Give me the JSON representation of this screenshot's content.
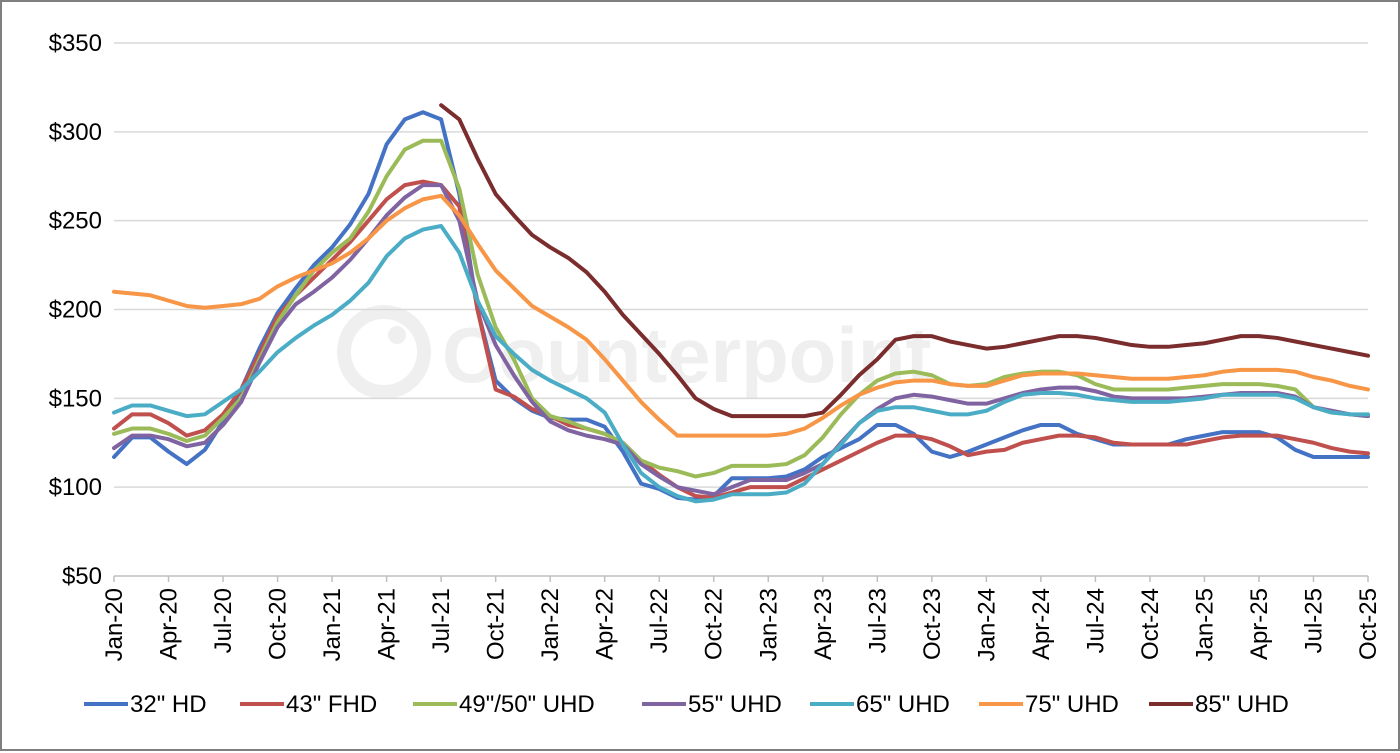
{
  "watermark": "Counterpoint",
  "chart_data": {
    "type": "line",
    "title": "",
    "xlabel": "",
    "ylabel": "",
    "ylim": [
      50,
      350
    ],
    "y_ticks": [
      "$50",
      "$100",
      "$150",
      "$200",
      "$250",
      "$300",
      "$350"
    ],
    "y_tick_values": [
      50,
      100,
      150,
      200,
      250,
      300,
      350
    ],
    "grid": true,
    "legend_position": "bottom",
    "x": [
      "Jan-20",
      "Feb-20",
      "Mar-20",
      "Apr-20",
      "May-20",
      "Jun-20",
      "Jul-20",
      "Aug-20",
      "Sep-20",
      "Oct-20",
      "Nov-20",
      "Dec-20",
      "Jan-21",
      "Feb-21",
      "Mar-21",
      "Apr-21",
      "May-21",
      "Jun-21",
      "Jul-21",
      "Aug-21",
      "Sep-21",
      "Oct-21",
      "Nov-21",
      "Dec-21",
      "Jan-22",
      "Feb-22",
      "Mar-22",
      "Apr-22",
      "May-22",
      "Jun-22",
      "Jul-22",
      "Aug-22",
      "Sep-22",
      "Oct-22",
      "Nov-22",
      "Dec-22",
      "Jan-23",
      "Feb-23",
      "Mar-23",
      "Apr-23",
      "May-23",
      "Jun-23",
      "Jul-23",
      "Aug-23",
      "Sep-23",
      "Oct-23",
      "Nov-23",
      "Dec-23",
      "Jan-24",
      "Feb-24",
      "Mar-24",
      "Apr-24",
      "May-24",
      "Jun-24",
      "Jul-24",
      "Aug-24",
      "Sep-24",
      "Oct-24",
      "Nov-24",
      "Dec-24",
      "Jan-25",
      "Feb-25",
      "Mar-25",
      "Apr-25",
      "May-25",
      "Jun-25",
      "Jul-25",
      "Aug-25",
      "Sep-25",
      "Oct-25"
    ],
    "x_tick_labels": [
      "Jan-20",
      "Apr-20",
      "Jul-20",
      "Oct-20",
      "Jan-21",
      "Apr-21",
      "Jul-21",
      "Oct-21",
      "Jan-22",
      "Apr-22",
      "Jul-22",
      "Oct-22",
      "Jan-23",
      "Apr-23",
      "Jul-23",
      "Oct-23",
      "Jan-24",
      "Apr-24",
      "Jul-24",
      "Oct-24",
      "Jan-25",
      "Apr-25",
      "Jul-25",
      "Oct-25"
    ],
    "series": [
      {
        "name": "32\" HD",
        "color": "#4472c4",
        "values": [
          117,
          128,
          128,
          120,
          113,
          121,
          137,
          155,
          178,
          198,
          212,
          225,
          235,
          248,
          265,
          293,
          307,
          311,
          307,
          265,
          200,
          160,
          150,
          143,
          139,
          138,
          138,
          134,
          120,
          102,
          99,
          94,
          93,
          95,
          105,
          105,
          105,
          106,
          110,
          117,
          122,
          127,
          135,
          135,
          130,
          120,
          117,
          120,
          124,
          128,
          132,
          135,
          135,
          130,
          127,
          124,
          124,
          124,
          124,
          127,
          129,
          131,
          131,
          131,
          128,
          121,
          117,
          117,
          117,
          117
        ]
      },
      {
        "name": "43\" FHD",
        "color": "#c0504d",
        "values": [
          133,
          141,
          141,
          136,
          129,
          132,
          141,
          155,
          175,
          196,
          208,
          218,
          228,
          238,
          250,
          262,
          270,
          272,
          270,
          258,
          200,
          155,
          151,
          144,
          140,
          135,
          133,
          130,
          125,
          115,
          107,
          100,
          95,
          94,
          97,
          100,
          100,
          100,
          105,
          110,
          115,
          120,
          125,
          129,
          129,
          127,
          123,
          118,
          120,
          121,
          125,
          127,
          129,
          129,
          128,
          125,
          124,
          124,
          124,
          124,
          126,
          128,
          129,
          129,
          129,
          127,
          125,
          122,
          120,
          119
        ]
      },
      {
        "name": "49\"/50\" UHD",
        "color": "#9bbb59",
        "values": [
          130,
          133,
          133,
          130,
          126,
          129,
          139,
          150,
          172,
          193,
          208,
          222,
          232,
          240,
          255,
          275,
          290,
          295,
          295,
          268,
          220,
          190,
          172,
          150,
          140,
          137,
          133,
          130,
          125,
          115,
          111,
          109,
          106,
          108,
          112,
          112,
          112,
          113,
          118,
          128,
          141,
          152,
          160,
          164,
          165,
          163,
          158,
          157,
          158,
          162,
          164,
          165,
          165,
          163,
          158,
          155,
          155,
          155,
          155,
          156,
          157,
          158,
          158,
          158,
          157,
          155,
          145,
          142,
          141,
          140
        ]
      },
      {
        "name": "55\" UHD",
        "color": "#8064a2",
        "values": [
          122,
          129,
          129,
          127,
          123,
          125,
          135,
          148,
          170,
          190,
          203,
          210,
          218,
          228,
          240,
          253,
          263,
          270,
          270,
          250,
          205,
          180,
          163,
          148,
          137,
          132,
          129,
          127,
          124,
          113,
          106,
          100,
          98,
          96,
          100,
          104,
          104,
          104,
          108,
          113,
          125,
          136,
          144,
          150,
          152,
          151,
          149,
          147,
          147,
          150,
          153,
          155,
          156,
          156,
          154,
          151,
          150,
          150,
          150,
          150,
          151,
          152,
          153,
          153,
          153,
          151,
          145,
          143,
          141,
          140
        ]
      },
      {
        "name": "65\" UHD",
        "color": "#4bacc6",
        "values": [
          142,
          146,
          146,
          143,
          140,
          141,
          148,
          155,
          165,
          176,
          184,
          191,
          197,
          205,
          215,
          230,
          240,
          245,
          247,
          232,
          205,
          185,
          175,
          166,
          160,
          155,
          150,
          142,
          124,
          108,
          100,
          95,
          92,
          93,
          96,
          96,
          96,
          97,
          102,
          113,
          124,
          136,
          143,
          145,
          145,
          143,
          141,
          141,
          143,
          148,
          152,
          153,
          153,
          152,
          150,
          149,
          148,
          148,
          148,
          149,
          150,
          152,
          152,
          152,
          152,
          150,
          145,
          142,
          141,
          141
        ]
      },
      {
        "name": "75\" UHD",
        "color": "#f79646",
        "values": [
          210,
          209,
          208,
          205,
          202,
          201,
          202,
          203,
          206,
          213,
          218,
          222,
          226,
          232,
          240,
          250,
          257,
          262,
          264,
          253,
          237,
          222,
          212,
          202,
          196,
          190,
          183,
          172,
          160,
          148,
          138,
          129,
          129,
          129,
          129,
          129,
          129,
          130,
          133,
          139,
          146,
          152,
          156,
          159,
          160,
          160,
          158,
          157,
          157,
          160,
          163,
          164,
          164,
          164,
          163,
          162,
          161,
          161,
          161,
          162,
          163,
          165,
          166,
          166,
          166,
          165,
          162,
          160,
          157,
          155
        ]
      },
      {
        "name": "85\" UHD",
        "color": "#7b2c2c",
        "start_index": 18,
        "values": [
          null,
          null,
          null,
          null,
          null,
          null,
          null,
          null,
          null,
          null,
          null,
          null,
          null,
          null,
          null,
          null,
          null,
          null,
          315,
          307,
          285,
          265,
          253,
          242,
          235,
          229,
          221,
          210,
          197,
          186,
          175,
          163,
          150,
          144,
          140,
          140,
          140,
          140,
          140,
          142,
          152,
          163,
          172,
          183,
          185,
          185,
          182,
          180,
          178,
          179,
          181,
          183,
          185,
          185,
          184,
          182,
          180,
          179,
          179,
          180,
          181,
          183,
          185,
          185,
          184,
          182,
          180,
          178,
          176,
          174
        ]
      }
    ]
  }
}
